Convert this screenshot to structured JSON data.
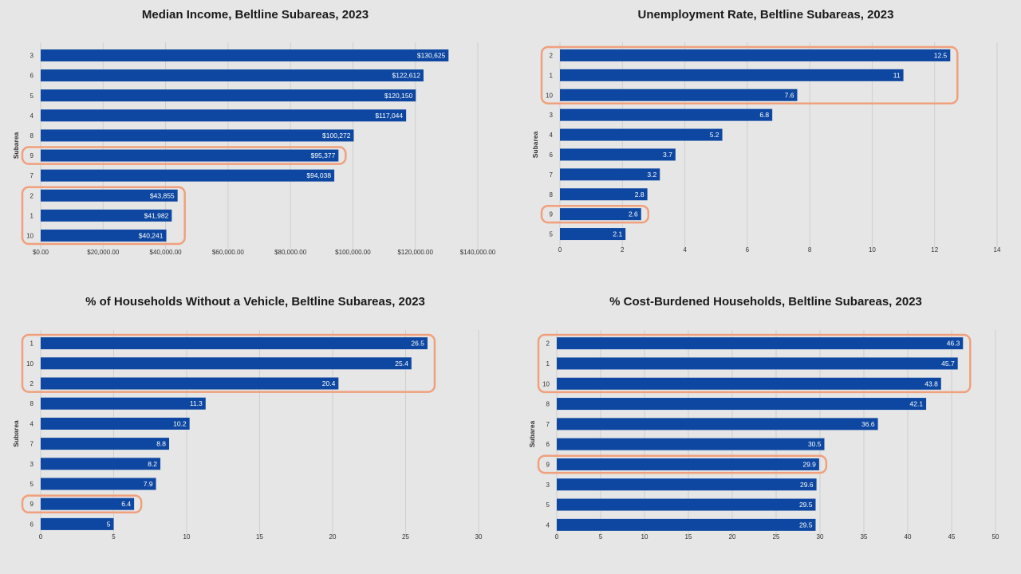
{
  "colors": {
    "bar": "#0d47a1",
    "highlight": "#f0a07c",
    "grid": "#cfcfcf",
    "background": "#e6e6e6"
  },
  "chart_data": [
    {
      "type": "bar",
      "orientation": "horizontal",
      "title": "Median Income, Beltline Subareas, 2023",
      "ylabel": "Subarea",
      "xlabel": "",
      "categories": [
        "3",
        "6",
        "5",
        "4",
        "8",
        "9",
        "7",
        "2",
        "1",
        "10"
      ],
      "values": [
        130625,
        122612,
        120150,
        117044,
        100272,
        95377,
        94038,
        43855,
        41982,
        40241
      ],
      "data_labels": [
        "$130,625",
        "$122,612",
        "$120,150",
        "$117,044",
        "$100,272",
        "$95,377",
        "$94,038",
        "$43,855",
        "$41,982",
        "$40,241"
      ],
      "xlim": [
        0,
        140000
      ],
      "xticks": [
        0,
        20000,
        40000,
        60000,
        80000,
        100000,
        120000,
        140000
      ],
      "xtick_labels": [
        "$0.00",
        "$20,000.00",
        "$40,000.00",
        "$60,000.00",
        "$80,000.00",
        "$100,000.00",
        "$120,000.00",
        "$140,000.00"
      ],
      "highlight_groups": [
        [
          "9"
        ],
        [
          "2",
          "1",
          "10"
        ]
      ],
      "grid": true
    },
    {
      "type": "bar",
      "orientation": "horizontal",
      "title": "Unemployment Rate, Beltline Subareas, 2023",
      "ylabel": "Subarea",
      "xlabel": "",
      "categories": [
        "2",
        "1",
        "10",
        "3",
        "4",
        "6",
        "7",
        "8",
        "9",
        "5"
      ],
      "values": [
        12.5,
        11,
        7.6,
        6.8,
        5.2,
        3.7,
        3.2,
        2.8,
        2.6,
        2.1
      ],
      "data_labels": [
        "12.5",
        "11",
        "7.6",
        "6.8",
        "5.2",
        "3.7",
        "3.2",
        "2.8",
        "2.6",
        "2.1"
      ],
      "xlim": [
        0,
        14
      ],
      "xticks": [
        0,
        2,
        4,
        6,
        8,
        10,
        12,
        14
      ],
      "xtick_labels": [
        "0",
        "2",
        "4",
        "6",
        "8",
        "10",
        "12",
        "14"
      ],
      "highlight_groups": [
        [
          "2",
          "1",
          "10"
        ],
        [
          "9"
        ]
      ],
      "grid": true
    },
    {
      "type": "bar",
      "orientation": "horizontal",
      "title": "% of Households Without a Vehicle, Beltline Subareas, 2023",
      "ylabel": "Subarea",
      "xlabel": "",
      "categories": [
        "1",
        "10",
        "2",
        "8",
        "4",
        "7",
        "3",
        "5",
        "9",
        "6"
      ],
      "values": [
        26.5,
        25.4,
        20.4,
        11.3,
        10.2,
        8.8,
        8.2,
        7.9,
        6.4,
        5
      ],
      "data_labels": [
        "26.5",
        "25.4",
        "20.4",
        "11.3",
        "10.2",
        "8.8",
        "8.2",
        "7.9",
        "6.4",
        "5"
      ],
      "xlim": [
        0,
        30
      ],
      "xticks": [
        0,
        5,
        10,
        15,
        20,
        25,
        30
      ],
      "xtick_labels": [
        "0",
        "5",
        "10",
        "15",
        "20",
        "25",
        "30"
      ],
      "highlight_groups": [
        [
          "1",
          "10",
          "2"
        ],
        [
          "9"
        ]
      ],
      "grid": true
    },
    {
      "type": "bar",
      "orientation": "horizontal",
      "title": "% Cost-Burdened Households, Beltline Subareas, 2023",
      "ylabel": "Subarea",
      "xlabel": "",
      "categories": [
        "2",
        "1",
        "10",
        "8",
        "7",
        "6",
        "9",
        "3",
        "5",
        "4"
      ],
      "values": [
        46.3,
        45.7,
        43.8,
        42.1,
        36.6,
        30.5,
        29.9,
        29.6,
        29.5,
        29.5
      ],
      "data_labels": [
        "46.3",
        "45.7",
        "43.8",
        "42.1",
        "36.6",
        "30.5",
        "29.9",
        "29.6",
        "29.5",
        "29.5"
      ],
      "xlim": [
        0,
        50
      ],
      "xticks": [
        0,
        5,
        10,
        15,
        20,
        25,
        30,
        35,
        40,
        45,
        50
      ],
      "xtick_labels": [
        "0",
        "5",
        "10",
        "15",
        "20",
        "25",
        "30",
        "35",
        "40",
        "45",
        "50"
      ],
      "highlight_groups": [
        [
          "2",
          "1",
          "10"
        ],
        [
          "9"
        ]
      ],
      "grid": true
    }
  ]
}
